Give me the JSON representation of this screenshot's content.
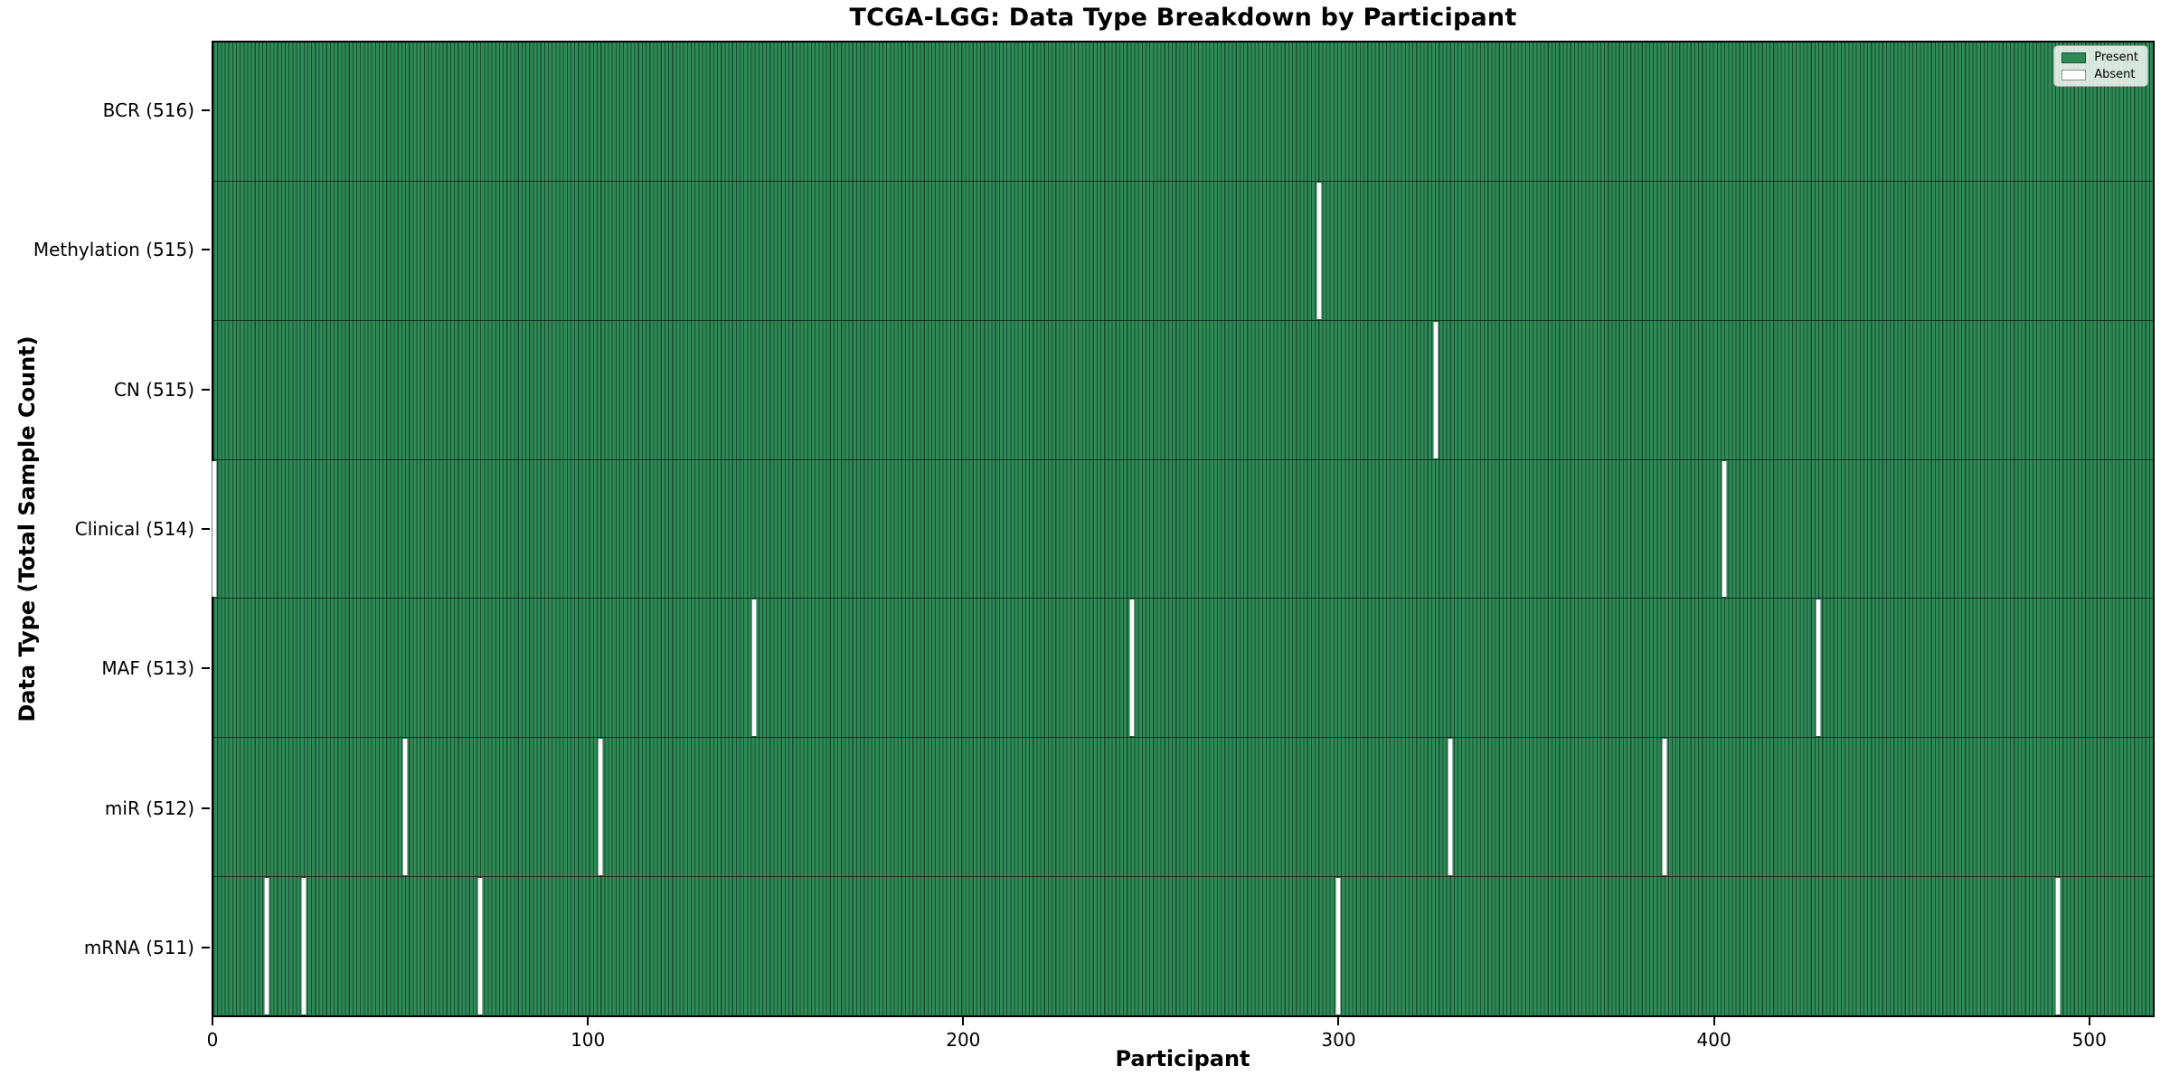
{
  "title": "TCGA-LGG: Data Type Breakdown by Participant",
  "legend": {
    "present_label": "Present",
    "absent_label": "Absent"
  },
  "colors": {
    "present": "#2e8b57",
    "absent": "#ffffff"
  },
  "chart_data": {
    "type": "heatmap",
    "title": "TCGA-LGG: Data Type Breakdown by Participant",
    "xlabel": "Participant",
    "ylabel": "Data Type (Total Sample Count)",
    "legend_entries": [
      "Present",
      "Absent"
    ],
    "legend_position": "upper right",
    "grid": false,
    "total_participants": 516,
    "x_ticks": [
      0,
      100,
      200,
      300,
      400,
      500
    ],
    "x_axis": {
      "min": -0.25,
      "max": 517.4
    },
    "rows": [
      {
        "label": "BCR (516)",
        "data_type": "BCR",
        "total_samples": 516,
        "absent_participants": []
      },
      {
        "label": "Methylation (515)",
        "data_type": "Methylation",
        "total_samples": 515,
        "absent_participants": [
          295
        ]
      },
      {
        "label": "CN (515)",
        "data_type": "CN",
        "total_samples": 515,
        "absent_participants": [
          326
        ]
      },
      {
        "label": "Clinical (514)",
        "data_type": "Clinical",
        "total_samples": 514,
        "absent_participants": [
          0,
          403
        ]
      },
      {
        "label": "MAF (513)",
        "data_type": "MAF",
        "total_samples": 513,
        "absent_participants": [
          144,
          245,
          428
        ]
      },
      {
        "label": "miR (512)",
        "data_type": "miR",
        "total_samples": 512,
        "absent_participants": [
          51,
          103,
          330,
          387
        ]
      },
      {
        "label": "mRNA (511)",
        "data_type": "mRNA",
        "total_samples": 511,
        "absent_participants": [
          14,
          24,
          71,
          300,
          492
        ]
      }
    ]
  }
}
